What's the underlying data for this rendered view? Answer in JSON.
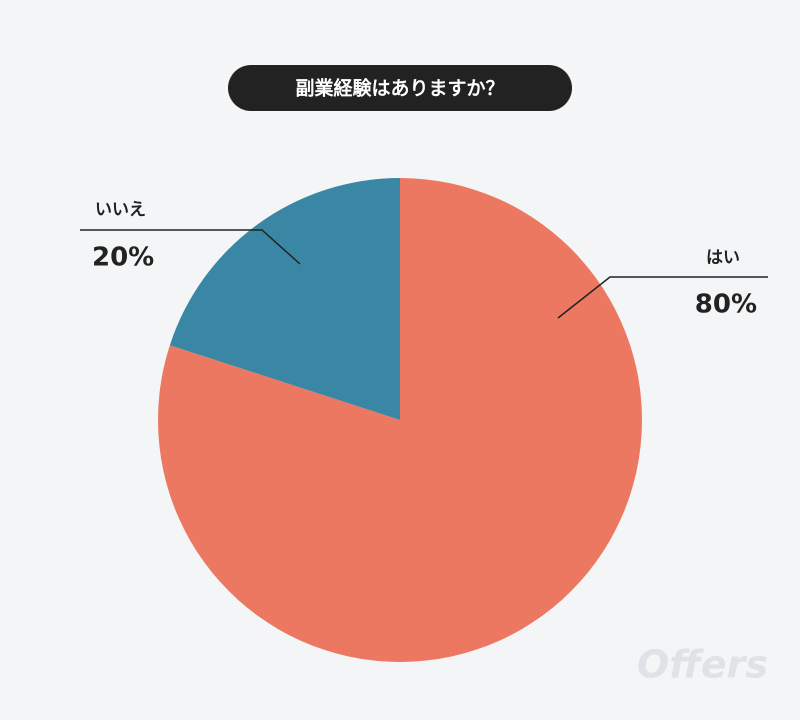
{
  "chart_data": {
    "type": "pie",
    "title": "副業経験はありますか？",
    "categories": [
      "はい",
      "いいえ"
    ],
    "values": [
      80,
      20
    ],
    "value_labels": [
      "80%",
      "20%"
    ],
    "colors": [
      "#ec7862",
      "#3a87a5"
    ],
    "watermark": "Offers"
  }
}
